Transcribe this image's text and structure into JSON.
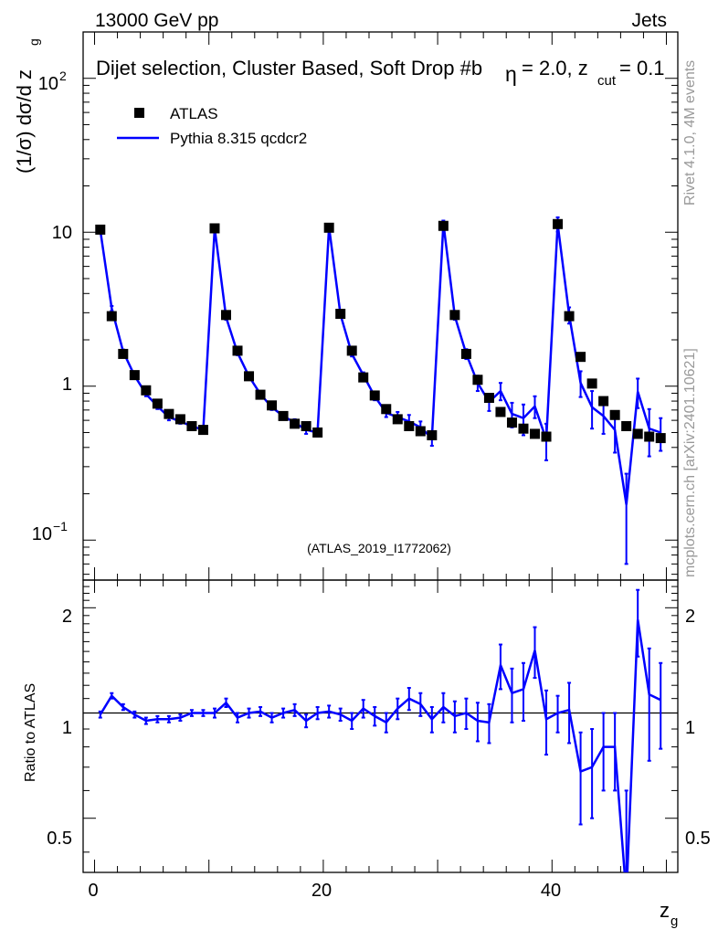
{
  "header": {
    "left": "13000 GeV pp",
    "right": "Jets"
  },
  "side_labels": {
    "rivet": "Rivet 4.1.0,  4M events",
    "mcplots": "mcplots.cern.ch [arXiv:2401.10621]"
  },
  "chart_data": {
    "type": "line",
    "title": "Dijet selection, Cluster Based, Soft Drop #b = 2.0, z_cut = 0.1",
    "title_parts": {
      "main": "Dijet selection, Cluster Based, Soft Drop #b",
      "eta": "η",
      "rest": " = 2.0, z",
      "cut": "cut",
      "tail": " = 0.1"
    },
    "watermark": "(ATLAS_2019_I1772062)",
    "xlabel": "z",
    "xlabel_sub": "g",
    "ylabel_top": "(1/σ) dσ/d z",
    "ylabel_top_sub": "g",
    "ylabel_bottom": "Ratio to ATLAS",
    "xlim": [
      -1,
      51
    ],
    "ylim_top": [
      0.055,
      200
    ],
    "ylim_bottom": [
      0.35,
      2.4
    ],
    "x_ticks": [
      "0",
      "20",
      "40"
    ],
    "y_ticks_top": [
      "10",
      "1"
    ],
    "y_ticks_top_pow": [
      {
        "base": "10",
        "exp": "2"
      },
      {
        "base": "10",
        "exp": "−1"
      }
    ],
    "y_ticks_bottom": [
      "2",
      "1",
      "0.5"
    ],
    "legend": {
      "data_label": "ATLAS",
      "mc_label": "Pythia 8.315 qcdcr2",
      "data_color": "#000000",
      "mc_color": "#0000ff"
    },
    "x": [
      0.5,
      1.5,
      2.5,
      3.5,
      4.5,
      5.5,
      6.5,
      7.5,
      8.5,
      9.5,
      10.5,
      11.5,
      12.5,
      13.5,
      14.5,
      15.5,
      16.5,
      17.5,
      18.5,
      19.5,
      20.5,
      21.5,
      22.5,
      23.5,
      24.5,
      25.5,
      26.5,
      27.5,
      28.5,
      29.5,
      30.5,
      31.5,
      32.5,
      33.5,
      34.5,
      35.5,
      36.5,
      37.5,
      38.5,
      39.5,
      40.5,
      41.5,
      42.5,
      43.5,
      44.5,
      45.5,
      46.5,
      47.5,
      48.5,
      49.5
    ],
    "series": [
      {
        "name": "ATLAS",
        "values": [
          10.4,
          2.85,
          1.62,
          1.18,
          0.94,
          0.77,
          0.66,
          0.61,
          0.55,
          0.52,
          10.6,
          2.9,
          1.7,
          1.16,
          0.88,
          0.75,
          0.64,
          0.57,
          0.55,
          0.5,
          10.7,
          2.95,
          1.7,
          1.14,
          0.87,
          0.71,
          0.61,
          0.55,
          0.51,
          0.48,
          11.0,
          2.9,
          1.62,
          1.1,
          0.84,
          0.68,
          0.58,
          0.53,
          0.49,
          0.47,
          11.3,
          2.85,
          1.55,
          1.04,
          0.8,
          0.65,
          0.55,
          0.49,
          0.47,
          0.46
        ]
      },
      {
        "name": "Pythia 8.315 qcdcr2",
        "values": [
          10.3,
          3.2,
          1.68,
          1.17,
          0.89,
          0.74,
          0.63,
          0.59,
          0.55,
          0.52,
          10.6,
          2.8,
          1.65,
          1.16,
          0.89,
          0.73,
          0.64,
          0.58,
          0.52,
          0.5,
          10.8,
          2.92,
          1.62,
          1.18,
          0.86,
          0.67,
          0.63,
          0.59,
          0.54,
          0.46,
          11.4,
          2.85,
          1.62,
          1.05,
          0.79,
          0.93,
          0.66,
          0.62,
          0.74,
          0.45,
          11.3,
          2.9,
          1.05,
          0.73,
          0.64,
          0.52,
          0.17,
          0.92,
          0.53,
          0.5
        ],
        "errors": [
          0.2,
          0.12,
          0.05,
          0.04,
          0.03,
          0.03,
          0.03,
          0.02,
          0.02,
          0.03,
          0.4,
          0.1,
          0.06,
          0.04,
          0.03,
          0.03,
          0.02,
          0.03,
          0.03,
          0.03,
          0.4,
          0.1,
          0.06,
          0.05,
          0.05,
          0.04,
          0.05,
          0.06,
          0.05,
          0.05,
          0.5,
          0.15,
          0.12,
          0.12,
          0.1,
          0.12,
          0.12,
          0.14,
          0.12,
          0.12,
          1.2,
          0.35,
          0.2,
          0.2,
          0.15,
          0.15,
          0.1,
          0.2,
          0.18,
          0.12
        ]
      }
    ],
    "ratio": [
      0.99,
      1.12,
      1.04,
      0.99,
      0.95,
      0.96,
      0.96,
      0.97,
      1.0,
      1.0,
      1.0,
      1.07,
      0.97,
      1.0,
      1.01,
      0.97,
      1.0,
      1.02,
      0.95,
      1.0,
      1.01,
      0.99,
      0.95,
      1.03,
      0.98,
      0.94,
      1.03,
      1.1,
      1.06,
      0.96,
      1.04,
      0.98,
      1.0,
      0.95,
      0.94,
      1.37,
      1.14,
      1.17,
      1.51,
      0.96,
      1.0,
      1.02,
      0.68,
      0.7,
      0.8,
      0.8,
      0.3,
      1.85,
      1.13,
      1.09
    ],
    "ratio_errors": [
      0.02,
      0.02,
      0.02,
      0.02,
      0.02,
      0.02,
      0.02,
      0.02,
      0.02,
      0.02,
      0.03,
      0.03,
      0.03,
      0.03,
      0.03,
      0.03,
      0.03,
      0.04,
      0.04,
      0.04,
      0.04,
      0.04,
      0.05,
      0.06,
      0.06,
      0.06,
      0.07,
      0.08,
      0.08,
      0.08,
      0.1,
      0.1,
      0.1,
      0.12,
      0.12,
      0.2,
      0.2,
      0.22,
      0.25,
      0.2,
      0.12,
      0.2,
      0.2,
      0.2,
      0.2,
      0.2,
      0.3,
      0.4,
      0.4,
      0.3
    ]
  }
}
